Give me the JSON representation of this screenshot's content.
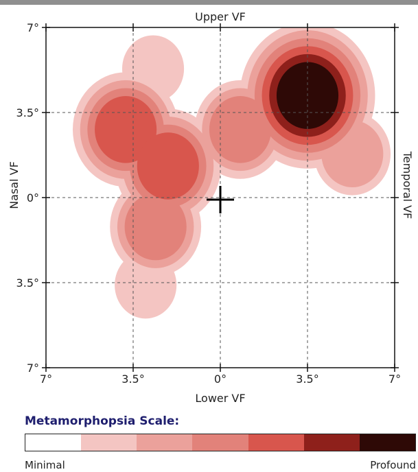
{
  "chart_data": {
    "type": "heatmap",
    "title": "",
    "labels": {
      "top": "Upper VF",
      "bottom": "Lower VF",
      "left": "Nasal VF",
      "right": "Temporal VF"
    },
    "x_ticks": [
      "7°",
      "3.5°",
      "0°",
      "3.5°",
      "7°"
    ],
    "y_ticks": [
      "7°",
      "3.5°",
      "0°",
      "3.5°",
      "7°"
    ],
    "xlim": [
      -7,
      7
    ],
    "ylim": [
      -7,
      7
    ],
    "grid": true,
    "fixation_marker": {
      "x": 0,
      "y": 0,
      "symbol": "cross"
    },
    "levels": 7,
    "level_colors": [
      "#ffffff",
      "#f4c5c2",
      "#eba19b",
      "#e2827a",
      "#d8564d",
      "#8e201b",
      "#2e0906"
    ],
    "hotspots": [
      {
        "x": 3.5,
        "y": 4.2,
        "peak_level": 6
      },
      {
        "x": -3.8,
        "y": 2.8,
        "peak_level": 4
      },
      {
        "x": -2.1,
        "y": 1.3,
        "peak_level": 4
      },
      {
        "x": -2.6,
        "y": -1.2,
        "peak_level": 3
      },
      {
        "x": 0.8,
        "y": 2.8,
        "peak_level": 3
      },
      {
        "x": 5.3,
        "y": 1.8,
        "peak_level": 2
      },
      {
        "x": -3.0,
        "y": -3.6,
        "peak_level": 1
      },
      {
        "x": -2.7,
        "y": 5.3,
        "peak_level": 1
      }
    ]
  },
  "scale": {
    "title": "Metamorphopsia Scale:",
    "min_label": "Minimal",
    "max_label": "Profound",
    "colors": [
      "#ffffff",
      "#f4c5c2",
      "#eba19b",
      "#e2827a",
      "#d8564d",
      "#8e201b",
      "#2e0906"
    ]
  }
}
